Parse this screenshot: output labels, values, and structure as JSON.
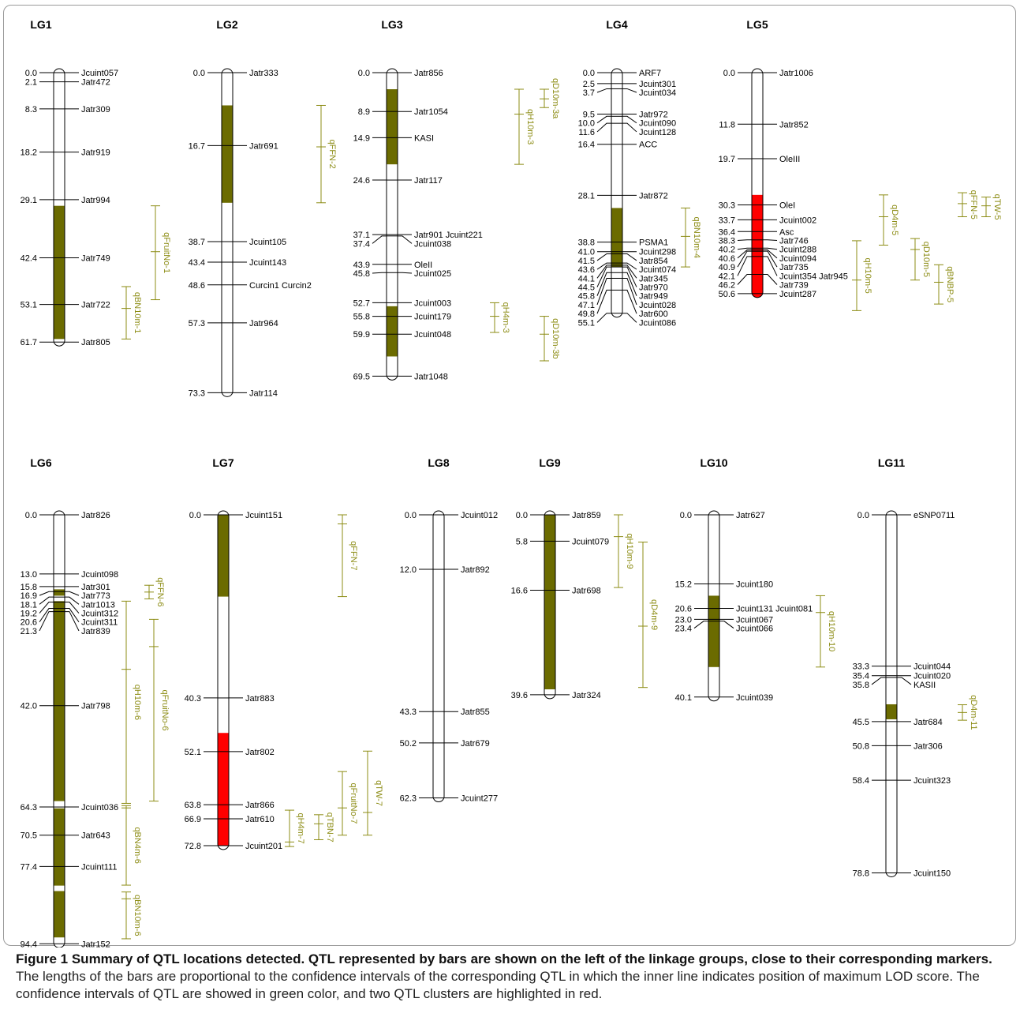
{
  "colors": {
    "qtl": "#6b6b00",
    "cluster": "#ff0000",
    "line": "#000000",
    "text": "#000000",
    "interval": "#8c8c14"
  },
  "caption": {
    "bold": "Figure 1 Summary of QTL locations detected. QTL represented by bars are shown on the left of the linkage groups, close to their corresponding markers.",
    "text": " The lengths of the bars are proportional to the confidence intervals of the corresponding QTL in which the inner line indicates position of maximum LOD score. The confidence intervals of QTL are showed in green color, and two QTL clusters are highlighted in red."
  },
  "groups": [
    {
      "name": "LG1",
      "len": 61.7,
      "markers": [
        {
          "pos": 0.0,
          "posLabel": "0.0",
          "name": "Jcuint057"
        },
        {
          "pos": 2.1,
          "posLabel": "2.1",
          "name": "Jatr472"
        },
        {
          "pos": 8.3,
          "posLabel": "8.3",
          "name": "Jatr309"
        },
        {
          "pos": 18.2,
          "posLabel": "18.2",
          "name": "Jatr919"
        },
        {
          "pos": 29.1,
          "posLabel": "29.1",
          "name": "Jatr994"
        },
        {
          "pos": 42.4,
          "posLabel": "42.4",
          "name": "Jatr749"
        },
        {
          "pos": 53.1,
          "posLabel": "53.1",
          "name": "Jatr722"
        },
        {
          "pos": 61.7,
          "posLabel": "61.7",
          "name": "Jatr805"
        }
      ],
      "fills": [
        {
          "from": 30.5,
          "to": 61.0,
          "kind": "qtl"
        }
      ],
      "qtls": [
        {
          "name": "qFruitNo-1",
          "from": 30.5,
          "to": 52.0,
          "peak": 41.0
        },
        {
          "name": "qBN10m-1",
          "from": 49.0,
          "to": 61.0,
          "peak": 54.0
        }
      ]
    },
    {
      "name": "LG2",
      "len": 73.3,
      "markers": [
        {
          "pos": 0.0,
          "posLabel": "0.0",
          "name": "Jatr333"
        },
        {
          "pos": 16.7,
          "posLabel": "16.7",
          "name": "Jatr691"
        },
        {
          "pos": 38.7,
          "posLabel": "38.7",
          "name": "Jcuint105"
        },
        {
          "pos": 43.4,
          "posLabel": "43.4",
          "name": "Jcuint143"
        },
        {
          "pos": 48.6,
          "posLabel": "48.6",
          "name": "Curcin1 Curcin2"
        },
        {
          "pos": 57.3,
          "posLabel": "57.3",
          "name": "Jatr964"
        },
        {
          "pos": 73.3,
          "posLabel": "73.3",
          "name": "Jatr114"
        }
      ],
      "fills": [
        {
          "from": 7.5,
          "to": 29.8,
          "kind": "qtl"
        }
      ],
      "qtls": [
        {
          "name": "qFFN-2",
          "from": 7.5,
          "to": 29.8,
          "peak": 17.0
        }
      ]
    },
    {
      "name": "LG3",
      "len": 69.5,
      "markers": [
        {
          "pos": 0.0,
          "posLabel": "0.0",
          "name": "Jatr856"
        },
        {
          "pos": 8.9,
          "posLabel": "8.9",
          "name": "Jatr1054"
        },
        {
          "pos": 14.9,
          "posLabel": "14.9",
          "name": "KASI"
        },
        {
          "pos": 24.6,
          "posLabel": "24.6",
          "name": "Jatr117"
        },
        {
          "pos": 37.1,
          "posLabel": "37.1",
          "name": "Jatr901 Jcuint221"
        },
        {
          "pos": 37.4,
          "posLabel": "37.4",
          "name": "Jcuint038"
        },
        {
          "pos": 43.9,
          "posLabel": "43.9",
          "name": "OleII"
        },
        {
          "pos": 45.8,
          "posLabel": "45.8",
          "name": "Jcuint025"
        },
        {
          "pos": 52.7,
          "posLabel": "52.7",
          "name": "Jcuint003"
        },
        {
          "pos": 55.8,
          "posLabel": "55.8",
          "name": "Jcuint179"
        },
        {
          "pos": 59.9,
          "posLabel": "59.9",
          "name": "Jcuint048"
        },
        {
          "pos": 69.5,
          "posLabel": "69.5",
          "name": "Jatr1048"
        }
      ],
      "fills": [
        {
          "from": 3.8,
          "to": 21.0,
          "kind": "qtl"
        },
        {
          "from": 53.5,
          "to": 65.0,
          "kind": "qtl"
        }
      ],
      "qtls": [
        {
          "name": "qH10m-3",
          "from": 3.8,
          "to": 21.0,
          "peak": 9.5
        },
        {
          "name": "qD10m-3a",
          "from": 3.8,
          "to": 8.0,
          "peak": 6.0
        },
        {
          "name": "qH4m-3",
          "from": 52.7,
          "to": 59.5,
          "peak": 55.8
        },
        {
          "name": "qD10m-3b",
          "from": 55.8,
          "to": 66.0,
          "peak": 59.9
        }
      ]
    },
    {
      "name": "LG4",
      "len": 55.1,
      "markers": [
        {
          "pos": 0.0,
          "posLabel": "0.0",
          "name": "ARF7"
        },
        {
          "pos": 2.5,
          "posLabel": "2.5",
          "name": "Jcuint301"
        },
        {
          "pos": 3.7,
          "posLabel": "3.7",
          "name": "Jcuint034"
        },
        {
          "pos": 9.5,
          "posLabel": "9.5",
          "name": "Jatr972"
        },
        {
          "pos": 10.0,
          "posLabel": "10.0",
          "name": "Jcuint090"
        },
        {
          "pos": 11.6,
          "posLabel": "11.6",
          "name": "Jcuint128"
        },
        {
          "pos": 16.4,
          "posLabel": "16.4",
          "name": "ACC"
        },
        {
          "pos": 28.1,
          "posLabel": "28.1",
          "name": "Jatr872"
        },
        {
          "pos": 38.8,
          "posLabel": "38.8",
          "name": "PSMA1"
        },
        {
          "pos": 41.0,
          "posLabel": "41.0",
          "name": "Jcuint298"
        },
        {
          "pos": 41.5,
          "posLabel": "41.5",
          "name": "Jatr854"
        },
        {
          "pos": 43.6,
          "posLabel": "43.6",
          "name": "Jcuint074"
        },
        {
          "pos": 44.1,
          "posLabel": "44.1",
          "name": "Jatr345"
        },
        {
          "pos": 44.5,
          "posLabel": "44.5",
          "name": "Jatr970"
        },
        {
          "pos": 45.8,
          "posLabel": "45.8",
          "name": "Jatr949"
        },
        {
          "pos": 47.1,
          "posLabel": "47.1",
          "name": "Jcuint028"
        },
        {
          "pos": 49.8,
          "posLabel": "49.8",
          "name": "Jatr600"
        },
        {
          "pos": 55.1,
          "posLabel": "55.1",
          "name": "Jcuint086"
        }
      ],
      "fills": [
        {
          "from": 31.0,
          "to": 44.5,
          "kind": "qtl"
        }
      ],
      "qtls": [
        {
          "name": "qBN10m-4",
          "from": 31.0,
          "to": 44.5,
          "peak": 37.5
        }
      ]
    },
    {
      "name": "LG5",
      "len": 50.6,
      "markers": [
        {
          "pos": 0.0,
          "posLabel": "0.0",
          "name": "Jatr1006"
        },
        {
          "pos": 11.8,
          "posLabel": "11.8",
          "name": "Jatr852"
        },
        {
          "pos": 19.7,
          "posLabel": "19.7",
          "name": "OleIII"
        },
        {
          "pos": 30.3,
          "posLabel": "30.3",
          "name": "OleI"
        },
        {
          "pos": 33.7,
          "posLabel": "33.7",
          "name": "Jcuint002"
        },
        {
          "pos": 36.4,
          "posLabel": "36.4",
          "name": "Asc"
        },
        {
          "pos": 38.3,
          "posLabel": "38.3",
          "name": "Jatr746"
        },
        {
          "pos": 40.2,
          "posLabel": "40.2",
          "name": "Jcuint288"
        },
        {
          "pos": 40.6,
          "posLabel": "40.6",
          "name": "Jcuint094"
        },
        {
          "pos": 40.9,
          "posLabel": "40.9",
          "name": "Jatr735"
        },
        {
          "pos": 42.1,
          "posLabel": "42.1",
          "name": "Jcuint354 Jatr945"
        },
        {
          "pos": 46.2,
          "posLabel": "46.2",
          "name": "Jatr739"
        },
        {
          "pos": 50.6,
          "posLabel": "50.6",
          "name": "Jcuint287"
        }
      ],
      "fills": [
        {
          "from": 28.0,
          "to": 52.5,
          "kind": "cluster"
        }
      ],
      "qtls": [
        {
          "name": "qH10m-5",
          "from": 38.5,
          "to": 54.5,
          "peak": 47.5
        },
        {
          "name": "qD4m-5",
          "from": 28.0,
          "to": 39.5,
          "peak": 33.0
        },
        {
          "name": "qD10m-5",
          "from": 38.0,
          "to": 47.5,
          "peak": 40.5
        },
        {
          "name": "qBNBP-5",
          "from": 44.0,
          "to": 53.0,
          "peak": 48.0
        },
        {
          "name": "qFFN-5",
          "from": 27.5,
          "to": 33.0,
          "peak": 30.0
        },
        {
          "name": "qTW-5",
          "from": 28.5,
          "to": 33.0,
          "peak": 30.5
        }
      ]
    },
    {
      "name": "LG6",
      "len": 94.4,
      "markers": [
        {
          "pos": 0.0,
          "posLabel": "0.0",
          "name": "Jatr826"
        },
        {
          "pos": 13.0,
          "posLabel": "13.0",
          "name": "Jcuint098"
        },
        {
          "pos": 15.8,
          "posLabel": "15.8",
          "name": "Jatr301"
        },
        {
          "pos": 16.9,
          "posLabel": "16.9",
          "name": "Jatr773"
        },
        {
          "pos": 18.1,
          "posLabel": "18.1",
          "name": "Jatr1013"
        },
        {
          "pos": 19.2,
          "posLabel": "19.2",
          "name": "Jcuint312"
        },
        {
          "pos": 20.6,
          "posLabel": "20.6",
          "name": "Jcuint311"
        },
        {
          "pos": 21.3,
          "posLabel": "21.3",
          "name": "Jatr839"
        },
        {
          "pos": 42.0,
          "posLabel": "42.0",
          "name": "Jatr798"
        },
        {
          "pos": 64.3,
          "posLabel": "64.3",
          "name": "Jcuint036"
        },
        {
          "pos": 70.5,
          "posLabel": "70.5",
          "name": "Jatr643"
        },
        {
          "pos": 77.4,
          "posLabel": "77.4",
          "name": "Jcuint111"
        },
        {
          "pos": 94.4,
          "posLabel": "94.4",
          "name": "Jatr152"
        }
      ],
      "fills": [
        {
          "from": 16.4,
          "to": 17.8,
          "kind": "qtl"
        },
        {
          "from": 19.0,
          "to": 63.0,
          "kind": "qtl"
        },
        {
          "from": 64.6,
          "to": 81.6,
          "kind": "qtl"
        },
        {
          "from": 82.8,
          "to": 93.0,
          "kind": "qtl"
        }
      ],
      "qtls": [
        {
          "name": "qH10m-6",
          "from": 19.0,
          "to": 63.5,
          "peak": 34.0
        },
        {
          "name": "qFruitNo-6",
          "from": 23.0,
          "to": 63.0,
          "peak": 29.0
        },
        {
          "name": "qFFN-6",
          "from": 15.5,
          "to": 18.5,
          "peak": 17.0
        },
        {
          "name": "qBN4m-6",
          "from": 64.0,
          "to": 81.5,
          "peak": 64.5
        },
        {
          "name": "qBN10m-6",
          "from": 83.0,
          "to": 93.3,
          "peak": 84.5
        }
      ]
    },
    {
      "name": "LG7",
      "len": 72.8,
      "markers": [
        {
          "pos": 0.0,
          "posLabel": "0.0",
          "name": "Jcuint151"
        },
        {
          "pos": 40.3,
          "posLabel": "40.3",
          "name": "Jatr883"
        },
        {
          "pos": 52.1,
          "posLabel": "52.1",
          "name": "Jatr802"
        },
        {
          "pos": 63.8,
          "posLabel": "63.8",
          "name": "Jatr866"
        },
        {
          "pos": 66.9,
          "posLabel": "66.9",
          "name": "Jatr610"
        },
        {
          "pos": 72.8,
          "posLabel": "72.8",
          "name": "Jcuint201"
        }
      ],
      "fills": [
        {
          "from": 0.0,
          "to": 18.0,
          "kind": "qtl"
        },
        {
          "from": 48.0,
          "to": 72.8,
          "kind": "cluster"
        }
      ],
      "qtls": [
        {
          "name": "qFFN-7",
          "from": 0.0,
          "to": 18.0,
          "peak": 2.0
        },
        {
          "name": "qH4m-7",
          "from": 65.0,
          "to": 73.0,
          "peak": 72.0
        },
        {
          "name": "qTBN-7",
          "from": 66.0,
          "to": 71.5,
          "peak": 68.0
        },
        {
          "name": "qFruitNo-7",
          "from": 56.5,
          "to": 70.5,
          "peak": 64.5
        },
        {
          "name": "qTW-7",
          "from": 52.0,
          "to": 70.5,
          "peak": 65.5
        }
      ]
    },
    {
      "name": "LG8",
      "len": 62.3,
      "markers": [
        {
          "pos": 0.0,
          "posLabel": "0.0",
          "name": "Jcuint012"
        },
        {
          "pos": 12.0,
          "posLabel": "12.0",
          "name": "Jatr892"
        },
        {
          "pos": 43.3,
          "posLabel": "43.3",
          "name": "Jatr855"
        },
        {
          "pos": 50.2,
          "posLabel": "50.2",
          "name": "Jatr679"
        },
        {
          "pos": 62.3,
          "posLabel": "62.3",
          "name": "Jcuint277"
        }
      ],
      "fills": [],
      "qtls": []
    },
    {
      "name": "LG9",
      "len": 39.6,
      "markers": [
        {
          "pos": 0.0,
          "posLabel": "0.0",
          "name": "Jatr859"
        },
        {
          "pos": 5.8,
          "posLabel": "5.8",
          "name": "Jcuint079"
        },
        {
          "pos": 16.6,
          "posLabel": "16.6",
          "name": "Jatr698"
        },
        {
          "pos": 39.6,
          "posLabel": "39.6",
          "name": "Jatr324"
        }
      ],
      "fills": [
        {
          "from": 0.0,
          "to": 38.4,
          "kind": "qtl"
        }
      ],
      "qtls": [
        {
          "name": "qH10m-9",
          "from": 0.0,
          "to": 16.0,
          "peak": 4.8
        },
        {
          "name": "qD4m-9",
          "from": 6.0,
          "to": 38.0,
          "peak": 24.5
        }
      ]
    },
    {
      "name": "LG10",
      "len": 40.1,
      "markers": [
        {
          "pos": 0.0,
          "posLabel": "0.0",
          "name": "Jatr627"
        },
        {
          "pos": 15.2,
          "posLabel": "15.2",
          "name": "Jcuint180"
        },
        {
          "pos": 20.6,
          "posLabel": "20.6",
          "name": "Jcuint131 Jcuint081"
        },
        {
          "pos": 23.0,
          "posLabel": "23.0",
          "name": "Jcuint067"
        },
        {
          "pos": 23.4,
          "posLabel": "23.4",
          "name": "Jcuint066"
        },
        {
          "pos": 40.1,
          "posLabel": "40.1",
          "name": "Jcuint039"
        }
      ],
      "fills": [
        {
          "from": 17.8,
          "to": 33.5,
          "kind": "qtl"
        }
      ],
      "qtls": [
        {
          "name": "qH10m-10",
          "from": 17.8,
          "to": 33.5,
          "peak": 21.5
        }
      ]
    },
    {
      "name": "LG11",
      "len": 78.8,
      "markers": [
        {
          "pos": 0.0,
          "posLabel": "0.0",
          "name": "eSNP0711"
        },
        {
          "pos": 33.3,
          "posLabel": "33.3",
          "name": "Jcuint044"
        },
        {
          "pos": 35.4,
          "posLabel": "35.4",
          "name": "Jcuint020"
        },
        {
          "pos": 35.8,
          "posLabel": "35.8",
          "name": "KASII"
        },
        {
          "pos": 45.5,
          "posLabel": "45.5",
          "name": "Jatr684"
        },
        {
          "pos": 50.8,
          "posLabel": "50.8",
          "name": "Jatr306"
        },
        {
          "pos": 58.4,
          "posLabel": "58.4",
          "name": "Jcuint323"
        },
        {
          "pos": 78.8,
          "posLabel": "78.8",
          "name": "Jcuint150"
        }
      ],
      "fills": [
        {
          "from": 41.7,
          "to": 45.0,
          "kind": "qtl"
        }
      ],
      "qtls": [
        {
          "name": "qD4m-11",
          "from": 41.8,
          "to": 45.2,
          "peak": 43.5
        }
      ]
    }
  ]
}
